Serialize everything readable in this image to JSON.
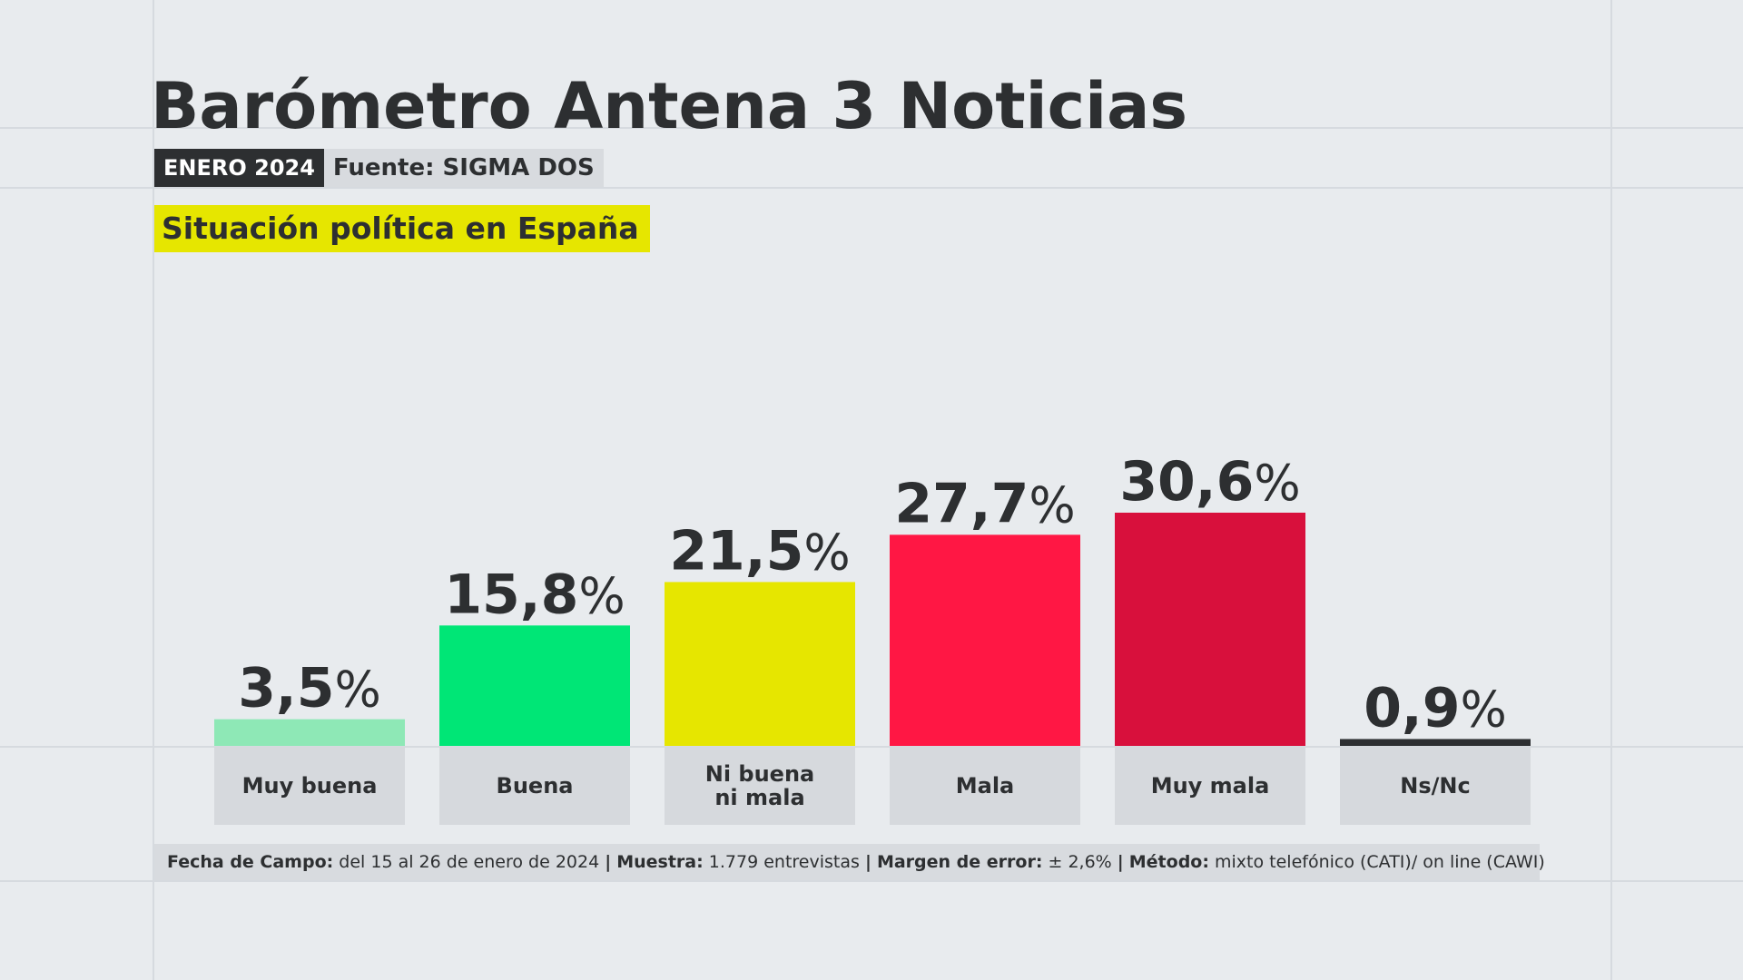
{
  "title": "Barómetro Antena 3 Noticias",
  "date_badge": "ENERO 2024",
  "source": "Fuente: SIGMA DOS",
  "question": "Situación política en España",
  "footer": {
    "fecha_label": "Fecha de Campo:",
    "fecha_value": "del 15 al 26 de enero de 2024",
    "sep": "|",
    "muestra_label": "Muestra:",
    "muestra_value": "1.779 entrevistas",
    "margen_label": "Margen de error:",
    "margen_value": "± 2,6%",
    "metodo_label": "Método:",
    "metodo_value": "mixto telefónico (CATI)/ on line (CAWI)"
  },
  "chart_data": {
    "type": "bar",
    "categories": [
      "Muy buena",
      "Buena",
      "Ni buena\nni mala",
      "Mala",
      "Muy mala",
      "Ns/Nc"
    ],
    "values": [
      3.5,
      15.8,
      21.5,
      27.7,
      30.6,
      0.9
    ],
    "value_labels": [
      "3,5%",
      "15,8%",
      "21,5%",
      "27,7%",
      "30,6%",
      "0,9%"
    ],
    "colors": [
      "#8ee8b6",
      "#00e676",
      "#e6e600",
      "#ff1744",
      "#d8103c",
      "#2d2f31"
    ],
    "ylim": [
      0,
      30.6
    ]
  }
}
